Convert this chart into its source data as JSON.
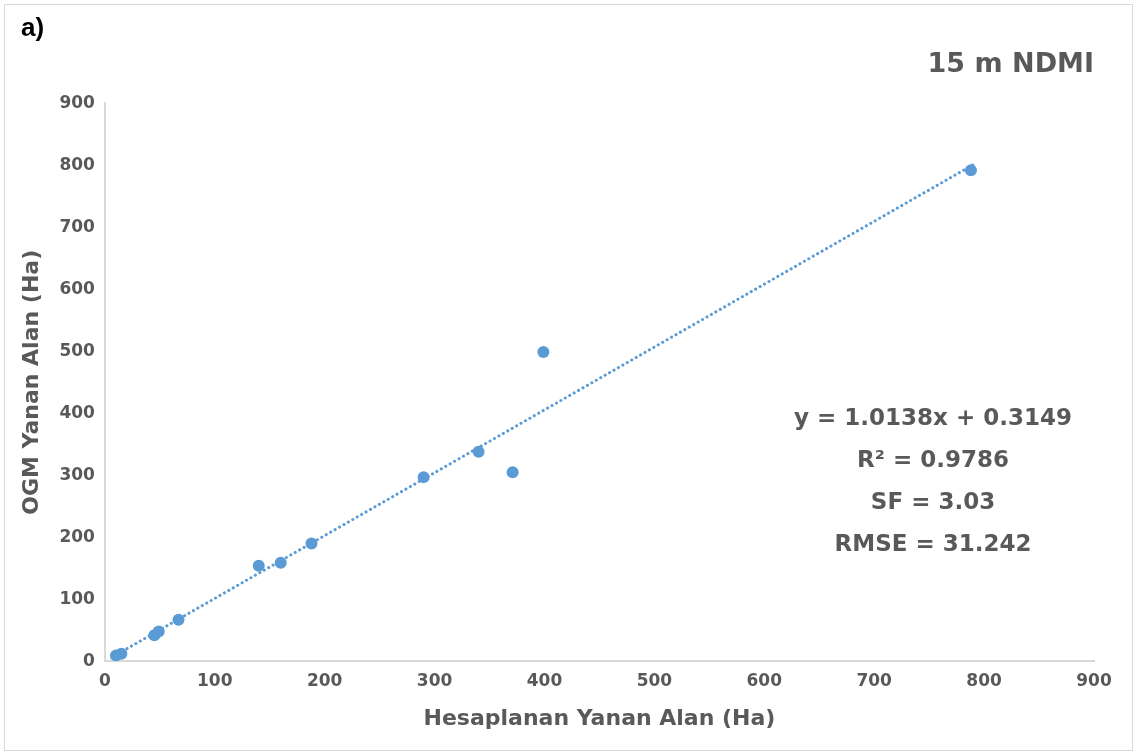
{
  "chart_data": {
    "type": "scatter",
    "title": "15 m NDMI",
    "xlabel": "Hesaplanan Yanan Alan (Ha)",
    "ylabel": "OGM Yanan Alan (Ha)",
    "xlim": [
      0,
      900
    ],
    "xticks": [
      0,
      100,
      200,
      300,
      400,
      500,
      600,
      700,
      800,
      900
    ],
    "ylim": [
      0,
      900
    ],
    "yticks": [
      0,
      100,
      200,
      300,
      400,
      500,
      600,
      700,
      800,
      900
    ],
    "grid": false,
    "legend": false,
    "marker": "circle",
    "annotations": [
      "a)",
      "y = 1.0138x + 0.3149",
      "R² = 0.9786",
      "SF = 3.03",
      "RMSE = 31.242"
    ],
    "series": [
      {
        "color": "#5b9bd5",
        "x": [
          10,
          15,
          45,
          49,
          67,
          140,
          160,
          188,
          290,
          340,
          371,
          399,
          788
        ],
        "values": [
          9,
          12,
          42,
          48,
          67,
          154,
          159,
          190,
          297,
          338,
          305,
          499,
          792
        ]
      },
      {
        "type": "line",
        "color": "#5b9bd5",
        "line_style": "dotted",
        "marker": "none",
        "x": [
          8,
          790
        ],
        "values": [
          8,
          801
        ]
      }
    ]
  }
}
